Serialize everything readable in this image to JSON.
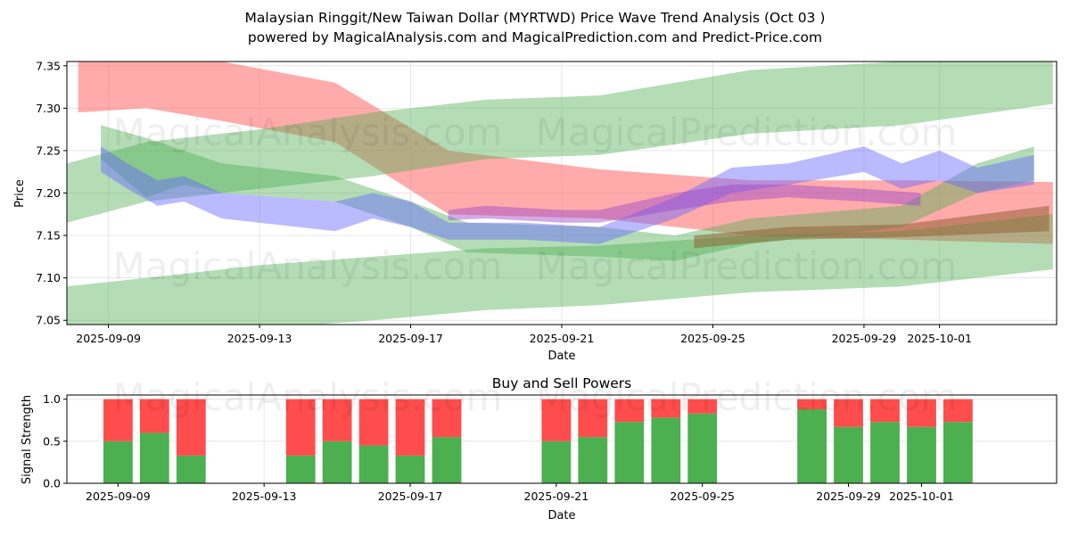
{
  "page": {
    "title_line1": "Malaysian Ringgit/New Taiwan Dollar (MYRTWD) Price Wave Trend Analysis (Oct 03 )",
    "title_line2": "powered by MagicalAnalysis.com and MagicalPrediction.com and Predict-Price.com",
    "watermarks": [
      "MagicalAnalysis.com",
      "MagicalPrediction.com"
    ]
  },
  "colors": {
    "red_band": "#ff6666",
    "green_band": "#4caf50",
    "blue_band": "#6666ff",
    "brown_band": "#8b5a2b",
    "purple_band": "#9944cc",
    "buy": "#4caf50",
    "sell": "#ff4c4c"
  },
  "chart_data": [
    {
      "type": "area",
      "title": "",
      "xlabel": "Date",
      "ylabel": "Price",
      "ylim": [
        7.045,
        7.355
      ],
      "x_range": [
        "2025-09-07.9",
        "2025-10-04.1"
      ],
      "yticks": [
        7.05,
        7.1,
        7.15,
        7.2,
        7.25,
        7.3,
        7.35
      ],
      "ytick_labels": [
        "7.05",
        "7.10",
        "7.15",
        "7.20",
        "7.25",
        "7.30",
        "7.35"
      ],
      "xticks": [
        "2025-09-09",
        "2025-09-13",
        "2025-09-17",
        "2025-09-21",
        "2025-09-25",
        "2025-09-29",
        "2025-10-01"
      ],
      "grid": true,
      "bands": [
        {
          "name": "red-downtrend-band",
          "color": "red",
          "x": [
            "2025-09-08.2",
            "2025-09-10",
            "2025-09-12",
            "2025-09-15",
            "2025-09-18",
            "2025-09-22",
            "2025-09-26",
            "2025-09-30",
            "2025-10-04"
          ],
          "upper": [
            7.36,
            7.36,
            7.355,
            7.33,
            7.25,
            7.228,
            7.215,
            7.215,
            7.213
          ],
          "lower": [
            7.295,
            7.3,
            7.285,
            7.26,
            7.175,
            7.17,
            7.15,
            7.145,
            7.14
          ]
        },
        {
          "name": "green-upper-band",
          "color": "green",
          "x": [
            "2025-09-07.9",
            "2025-09-10",
            "2025-09-13",
            "2025-09-16",
            "2025-09-19",
            "2025-09-22",
            "2025-09-26",
            "2025-09-30",
            "2025-10-04"
          ],
          "upper": [
            7.235,
            7.26,
            7.275,
            7.295,
            7.31,
            7.315,
            7.345,
            7.355,
            7.375
          ],
          "lower": [
            7.165,
            7.19,
            7.205,
            7.22,
            7.24,
            7.245,
            7.27,
            7.28,
            7.305
          ]
        },
        {
          "name": "green-lower-band",
          "color": "green",
          "x": [
            "2025-09-07.9",
            "2025-09-10",
            "2025-09-13",
            "2025-09-16",
            "2025-09-19",
            "2025-09-22",
            "2025-09-26",
            "2025-09-30",
            "2025-10-04"
          ],
          "upper": [
            7.09,
            7.1,
            7.115,
            7.125,
            7.135,
            7.138,
            7.15,
            7.155,
            7.175
          ],
          "lower": [
            7.03,
            7.035,
            7.04,
            7.05,
            7.062,
            7.068,
            7.083,
            7.09,
            7.11
          ]
        },
        {
          "name": "green-wave-band",
          "color": "green",
          "x": [
            "2025-09-08.8",
            "2025-09-10",
            "2025-09-11",
            "2025-09-12",
            "2025-09-15",
            "2025-09-17",
            "2025-09-18.5",
            "2025-09-22",
            "2025-09-24",
            "2025-09-26",
            "2025-09-30",
            "2025-10-02",
            "2025-10-03.5"
          ],
          "upper": [
            7.28,
            7.265,
            7.25,
            7.235,
            7.22,
            7.19,
            7.165,
            7.16,
            7.15,
            7.17,
            7.185,
            7.235,
            7.255
          ],
          "lower": [
            7.24,
            7.195,
            7.21,
            7.2,
            7.19,
            7.16,
            7.13,
            7.125,
            7.12,
            7.14,
            7.16,
            7.2,
            7.215
          ]
        },
        {
          "name": "blue-wave-band",
          "color": "blue",
          "x": [
            "2025-09-08.8",
            "2025-09-09.5",
            "2025-09-10.3",
            "2025-09-11",
            "2025-09-12",
            "2025-09-15",
            "2025-09-16",
            "2025-09-17",
            "2025-09-18",
            "2025-09-20",
            "2025-09-22",
            "2025-09-24",
            "2025-09-25.5",
            "2025-09-27",
            "2025-09-29",
            "2025-09-30",
            "2025-10-01",
            "2025-10-02",
            "2025-10-03.5"
          ],
          "upper": [
            7.255,
            7.235,
            7.215,
            7.22,
            7.2,
            7.19,
            7.2,
            7.19,
            7.165,
            7.165,
            7.16,
            7.195,
            7.23,
            7.235,
            7.255,
            7.235,
            7.25,
            7.23,
            7.245
          ],
          "lower": [
            7.225,
            7.205,
            7.185,
            7.19,
            7.17,
            7.155,
            7.17,
            7.16,
            7.145,
            7.145,
            7.14,
            7.17,
            7.2,
            7.21,
            7.225,
            7.205,
            7.215,
            7.2,
            7.21
          ]
        },
        {
          "name": "purple-overlap-band",
          "color": "purple",
          "x": [
            "2025-09-18",
            "2025-09-19",
            "2025-09-21",
            "2025-09-22",
            "2025-09-24",
            "2025-09-25.5",
            "2025-09-27",
            "2025-09-29",
            "2025-09-30.5"
          ],
          "upper": [
            7.18,
            7.185,
            7.18,
            7.18,
            7.2,
            7.21,
            7.21,
            7.205,
            7.2
          ],
          "lower": [
            7.168,
            7.17,
            7.165,
            7.165,
            7.18,
            7.19,
            7.195,
            7.19,
            7.185
          ]
        },
        {
          "name": "brown-overlap-band",
          "color": "brown",
          "x": [
            "2025-09-24.5",
            "2025-09-27",
            "2025-09-30",
            "2025-10-03.9"
          ],
          "upper": [
            7.15,
            7.16,
            7.163,
            7.185
          ],
          "lower": [
            7.135,
            7.145,
            7.148,
            7.155
          ]
        }
      ]
    },
    {
      "type": "bar",
      "title": "Buy and Sell Powers",
      "xlabel": "Date",
      "ylabel": "Signal Strength",
      "ylim": [
        0,
        1.05
      ],
      "yticks": [
        0.0,
        0.5,
        1.0
      ],
      "ytick_labels": [
        "0.0",
        "0.5",
        "1.0"
      ],
      "xticks": [
        "2025-09-09",
        "2025-09-13",
        "2025-09-17",
        "2025-09-21",
        "2025-09-25",
        "2025-09-29",
        "2025-10-01"
      ],
      "grid": true,
      "categories": [
        "2025-09-09",
        "2025-09-10",
        "2025-09-11",
        "2025-09-14",
        "2025-09-15",
        "2025-09-16",
        "2025-09-17",
        "2025-09-18",
        "2025-09-21",
        "2025-09-22",
        "2025-09-23",
        "2025-09-24",
        "2025-09-25",
        "2025-09-28",
        "2025-09-29",
        "2025-09-30",
        "2025-10-01",
        "2025-10-02"
      ],
      "series": [
        {
          "name": "Buy",
          "values": [
            0.5,
            0.6,
            0.33,
            0.33,
            0.5,
            0.45,
            0.33,
            0.55,
            0.5,
            0.55,
            0.73,
            0.78,
            0.83,
            0.88,
            0.67,
            0.73,
            0.67,
            0.73
          ]
        },
        {
          "name": "Sell",
          "values": [
            0.5,
            0.4,
            0.67,
            0.67,
            0.5,
            0.55,
            0.67,
            0.45,
            0.5,
            0.45,
            0.27,
            0.22,
            0.17,
            0.12,
            0.33,
            0.27,
            0.33,
            0.27
          ]
        }
      ]
    }
  ]
}
